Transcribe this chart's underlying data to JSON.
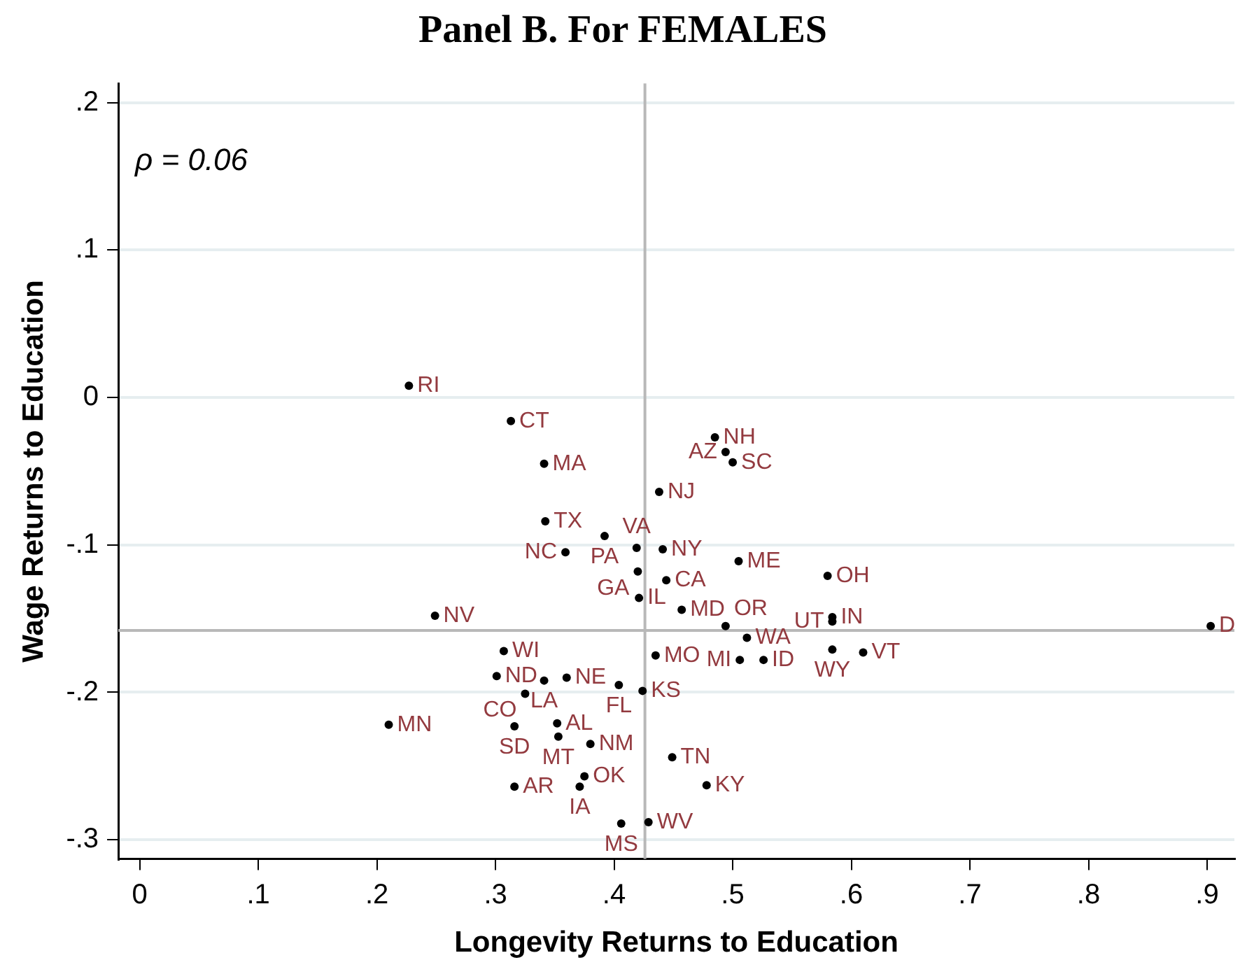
{
  "chart_data": {
    "type": "scatter",
    "title": "Panel B. For FEMALES",
    "xlabel": "Longevity Returns to Education",
    "ylabel": "Wage Returns to Education",
    "xlim": [
      -0.018,
      0.923
    ],
    "ylim": [
      -0.313,
      0.213
    ],
    "xticks": [
      0,
      {
        "value": 0.1,
        "label": ".1"
      },
      {
        "value": 0.2,
        "label": ".2"
      },
      {
        "value": 0.3,
        "label": ".3"
      },
      {
        "value": 0.4,
        "label": ".4"
      },
      {
        "value": 0.5,
        "label": ".5"
      },
      {
        "value": 0.6,
        "label": ".6"
      },
      {
        "value": 0.7,
        "label": ".7"
      },
      {
        "value": 0.8,
        "label": ".8"
      },
      {
        "value": 0.9,
        "label": ".9"
      }
    ],
    "yticks": [
      {
        "value": 0.2,
        "label": ".2"
      },
      {
        "value": 0.1,
        "label": ".1"
      },
      0,
      {
        "value": -0.1,
        "label": "-.1"
      },
      {
        "value": -0.2,
        "label": "-.2"
      },
      {
        "value": -0.3,
        "label": "-.3"
      }
    ],
    "grid": "y",
    "legend": false,
    "marker": "circle",
    "series": [
      {
        "color": "#000000",
        "x": [
          0.227,
          0.313,
          0.485,
          0.494,
          0.5,
          0.341,
          0.438,
          0.342,
          0.392,
          0.419,
          0.441,
          0.359,
          0.505,
          0.58,
          0.42,
          0.444,
          0.421,
          0.457,
          0.249,
          0.494,
          0.584,
          0.584,
          0.903,
          0.512,
          0.584,
          0.61,
          0.506,
          0.526,
          0.435,
          0.307,
          0.301,
          0.341,
          0.36,
          0.404,
          0.424,
          0.325,
          0.21,
          0.316,
          0.352,
          0.353,
          0.38,
          0.449,
          0.375,
          0.478,
          0.316,
          0.371,
          0.406,
          0.429
        ],
        "values": [
          0.008,
          -0.016,
          -0.027,
          -0.037,
          -0.044,
          -0.045,
          -0.064,
          -0.084,
          -0.094,
          -0.102,
          -0.103,
          -0.105,
          -0.111,
          -0.121,
          -0.118,
          -0.124,
          -0.136,
          -0.144,
          -0.148,
          -0.155,
          -0.149,
          -0.152,
          -0.155,
          -0.163,
          -0.171,
          -0.173,
          -0.178,
          -0.178,
          -0.175,
          -0.172,
          -0.189,
          -0.192,
          -0.19,
          -0.195,
          -0.199,
          -0.201,
          -0.222,
          -0.223,
          -0.221,
          -0.23,
          -0.235,
          -0.244,
          -0.257,
          -0.263,
          -0.264,
          -0.264,
          -0.289,
          -0.288
        ],
        "value_labels": [
          "RI",
          "CT",
          "NH",
          "AZ",
          "SC",
          "MA",
          "NJ",
          "TX",
          "PA",
          "VA",
          "NY",
          "NC",
          "ME",
          "OH",
          "GA",
          "CA",
          "IL",
          "MD",
          "NV",
          "OR",
          "IN",
          "UT",
          "D",
          "WA",
          "WY",
          "VT",
          "MI",
          "ID",
          "MO",
          "WI",
          "ND",
          "LA",
          "NE",
          "FL",
          "KS",
          "CO",
          "MN",
          "SD",
          "AL",
          "MT",
          "NM",
          "TN",
          "OK",
          "KY",
          "AR",
          "IA",
          "MS",
          "WV"
        ]
      }
    ],
    "ref_lines": [
      {
        "axis": "x",
        "value": 0.426,
        "color": "#b8b8b8"
      },
      {
        "axis": "y",
        "value": -0.158,
        "color": "#b8b8b8"
      }
    ],
    "annotations": [
      "ρ = 0.06"
    ]
  }
}
